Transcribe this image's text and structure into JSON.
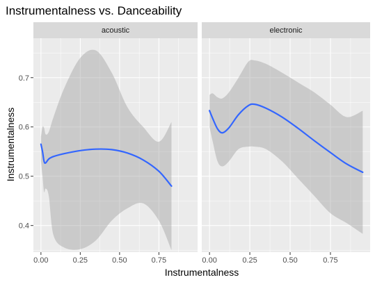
{
  "chart_data": {
    "type": "line",
    "title": "Instrumentalness vs. Danceability",
    "xlabel": "Instrumentalness",
    "ylabel": "Instrumentalness",
    "x_ticks": [
      0.0,
      0.25,
      0.5,
      0.75
    ],
    "x_tick_labels": [
      "0.00",
      "0.25",
      "0.50",
      "0.75"
    ],
    "y_ticks": [
      0.4,
      0.5,
      0.6,
      0.7
    ],
    "y_tick_labels": [
      "0.4",
      "0.5",
      "0.6",
      "0.7"
    ],
    "xlim": [
      -0.048,
      0.996
    ],
    "ylim": [
      0.346,
      0.78
    ],
    "grid": true,
    "colors": {
      "panel_bg": "#ebebeb",
      "strip_bg": "#d9d9d9",
      "grid": "#ffffff",
      "line": "#3366ff",
      "ribbon": "#999999"
    },
    "panels": [
      {
        "label": "acoustic",
        "x": [
          0.0,
          0.01,
          0.02,
          0.03,
          0.05,
          0.08,
          0.15,
          0.25,
          0.35,
          0.45,
          0.55,
          0.65,
          0.75,
          0.83
        ],
        "y": [
          0.565,
          0.55,
          0.53,
          0.527,
          0.535,
          0.54,
          0.546,
          0.552,
          0.555,
          0.554,
          0.547,
          0.533,
          0.51,
          0.48
        ],
        "lower": [
          0.53,
          0.5,
          0.468,
          0.475,
          0.46,
          0.38,
          0.355,
          0.352,
          0.37,
          0.41,
          0.435,
          0.445,
          0.41,
          0.35
        ],
        "upper": [
          0.58,
          0.6,
          0.598,
          0.585,
          0.59,
          0.62,
          0.68,
          0.74,
          0.755,
          0.71,
          0.64,
          0.6,
          0.57,
          0.61
        ]
      },
      {
        "label": "electronic",
        "x": [
          0.0,
          0.02,
          0.05,
          0.08,
          0.12,
          0.18,
          0.24,
          0.28,
          0.35,
          0.45,
          0.55,
          0.65,
          0.75,
          0.85,
          0.95
        ],
        "y": [
          0.633,
          0.617,
          0.596,
          0.588,
          0.598,
          0.625,
          0.643,
          0.646,
          0.638,
          0.62,
          0.597,
          0.572,
          0.548,
          0.525,
          0.508
        ],
        "lower": [
          0.6,
          0.57,
          0.53,
          0.52,
          0.53,
          0.555,
          0.56,
          0.56,
          0.555,
          0.53,
          0.495,
          0.46,
          0.425,
          0.405,
          0.383
        ],
        "upper": [
          0.665,
          0.668,
          0.66,
          0.658,
          0.67,
          0.7,
          0.732,
          0.735,
          0.728,
          0.71,
          0.69,
          0.67,
          0.645,
          0.62,
          0.633
        ]
      }
    ]
  }
}
